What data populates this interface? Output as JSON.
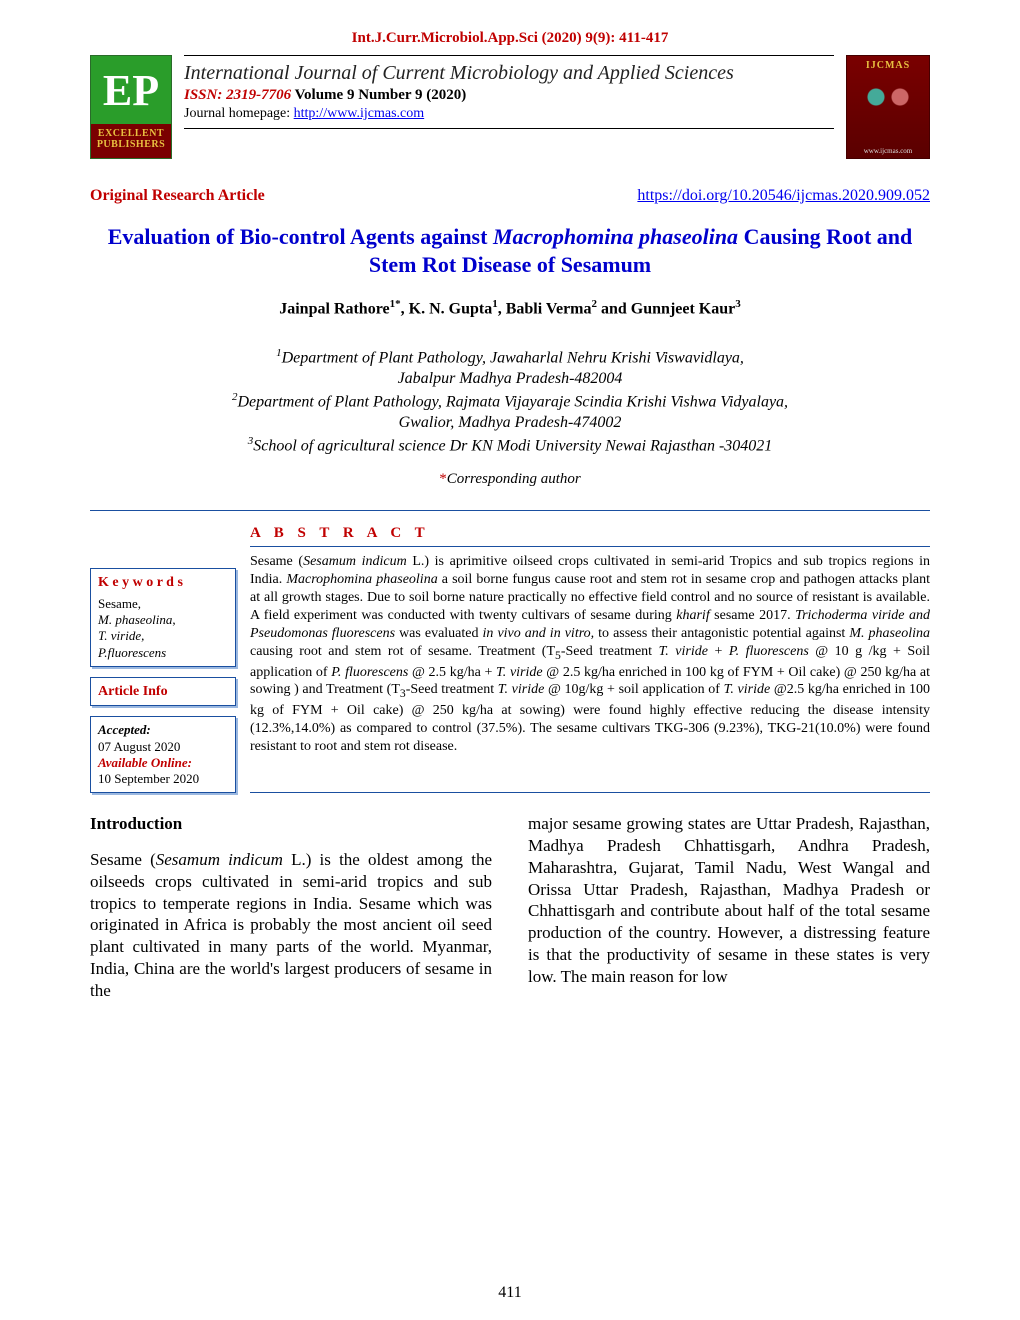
{
  "header_citation": "Int.J.Curr.Microbiol.App.Sci (2020) 9(9): 411-417",
  "logo_left": {
    "monogram": "EP",
    "line1": "EXCELLENT",
    "line2": "PUBLISHERS"
  },
  "masthead": {
    "journal_title": "International Journal of Current Microbiology and Applied Sciences",
    "issn_prefix": "ISSN: 2319-7706",
    "volume": " Volume 9 Number 9 (2020)",
    "homepage_label": "Journal homepage: ",
    "homepage_url": "http://www.ijcmas.com"
  },
  "logo_right": {
    "title": "IJCMAS",
    "url": "www.ijcmas.com"
  },
  "article_type": "Original Research Article",
  "doi_url": "https://doi.org/10.20546/ijcmas.2020.909.052",
  "title_parts": {
    "p1": "Evaluation of Bio-control Agents against ",
    "p2_ital": "Macrophomina phaseolina",
    "p3": " Causing Root and Stem Rot Disease of Sesamum"
  },
  "authors_html": "Jainpal Rathore<sup>1*</sup>, K. N. Gupta<sup>1</sup>, Babli Verma<sup>2</sup> and Gunnjeet Kaur<sup>3</sup>",
  "affiliations_html": "<sup>1</sup>Department of Plant Pathology, Jawaharlal Nehru Krishi Viswavidlaya,<br>Jabalpur Madhya Pradesh-482004<br><sup>2</sup>Department of Plant Pathology, Rajmata Vijayaraje Scindia Krishi Vishwa Vidyalaya,<br>Gwalior, Madhya Pradesh-474002<br><sup>3</sup>School of agricultural science Dr KN Modi University Newai Rajasthan -304021",
  "corresponding": "Corresponding author",
  "abstract_heading": "A B S T R A C T",
  "keywords": {
    "heading": "K e y w o r d s",
    "items_html": "<span class='kw-plain'>Sesame,</span><br><span class='kw-ital'>M. phaseolina</span><span class='kw-plain'>,</span><br><span class='kw-ital'>T. viride,</span><br><span class='kw-ital'>P.fluorescens</span>"
  },
  "article_info": {
    "heading": "Article Info",
    "accepted_label": "Accepted:",
    "accepted_date": "07 August 2020",
    "online_label": "Available Online:",
    "online_date": "10 September 2020"
  },
  "abstract_html": "Sesame (<span class='ital'>Sesamum indicum</span> L.) is aprimitive oilseed crops cultivated in semi-arid Tropics and sub tropics regions in India. <span class='ital'>Macrophomina phaseolina</span> a soil borne fungus cause root and stem rot in sesame crop and pathogen attacks plant at all growth stages. Due to soil borne nature practically no effective field control and no source of resistant is available. A field experiment was conducted with twenty cultivars of sesame during <span class='ital'>kharif</span> sesame 2017. <span class='ital'>Trichoderma viride and Pseudomonas fluorescens</span> was evaluated <span class='ital'>in vivo and in vitro,</span> to assess their antagonistic potential against <span class='ital'>M. phaseolina</span> causing root and stem rot of sesame. Treatment (T<sub>5</sub>-Seed treatment <span class='ital'>T. viride</span> + <span class='ital'>P. fluorescens</span> @ 10 g /kg + Soil application of <span class='ital'>P. fluorescens</span> @ 2.5 kg/ha + <span class='ital'>T. viride</span> @ 2.5 kg/ha enriched in 100 kg of FYM + Oil cake) @ 250 kg/ha at sowing ) and Treatment (T<sub>3</sub>-Seed treatment <span class='ital'>T. viride</span> @ 10g/kg + soil application of <span class='ital'>T. viride</span> @2.5 kg/ha enriched in 100 kg of FYM + Oil cake) @ 250 kg/ha at sowing) were found highly effective reducing the disease intensity (12.3%,14.0%) as compared to control (37.5%). The sesame cultivars TKG-306 (9.23%), TKG-21(10.0%) were found resistant to root and stem rot disease.",
  "intro_heading": "Introduction",
  "col1_html": "Sesame (<span style='font-style:italic'>Sesamum indicum</span> L.) is the oldest among the oilseeds crops cultivated in semi-arid tropics and sub tropics to temperate regions in India. Sesame which was originated in Africa is probably the most ancient oil seed plant cultivated in many parts of the world. Myanmar, India, China are the world's largest producers of sesame in the",
  "col2_html": "major sesame growing states are Uttar Pradesh, Rajasthan, Madhya Pradesh Chhattisgarh, Andhra Pradesh, Maharashtra, Gujarat, Tamil Nadu, West Wangal and Orissa Uttar Pradesh, Rajasthan, Madhya Pradesh or Chhattisgarh and contribute about half of the total sesame production of the country. However, a distressing feature is that the productivity of sesame in these states is very low. The main reason for low",
  "page_number": "411",
  "colors": {
    "red": "#c00000",
    "blue_title": "#0000cc",
    "rule_blue": "#1a4fa0",
    "link": "#0000ee"
  }
}
